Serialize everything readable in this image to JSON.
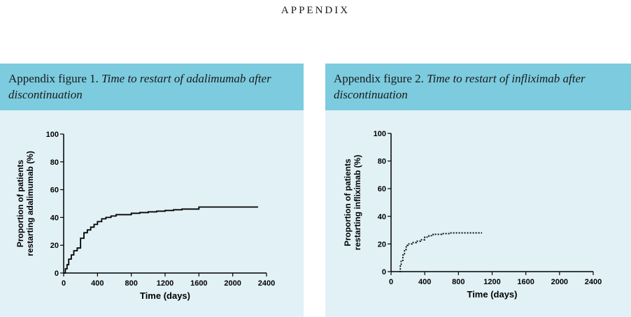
{
  "header": {
    "title": "APPENDIX"
  },
  "figures": [
    {
      "caption_label": "Appendix figure 1.",
      "caption_title": "Time to restart of adalimumab after discontinuation"
    },
    {
      "caption_label": "Appendix figure 2.",
      "caption_title": "Time to restart of infliximab after discontinuation"
    }
  ],
  "chart_data": [
    {
      "type": "line",
      "line_style": "solid",
      "step": true,
      "xlabel": "Time (days)",
      "ylabel": [
        "Proportion of patients",
        "restarting adalimumab (%)"
      ],
      "xlim": [
        0,
        2400
      ],
      "ylim": [
        0,
        100
      ],
      "xticks": [
        "0",
        "400",
        "800",
        "1200",
        "1600",
        "2000",
        "2400"
      ],
      "yticks": [
        "0",
        "20",
        "40",
        "60",
        "80",
        "100"
      ],
      "series": [
        {
          "x": [
            0,
            20,
            40,
            60,
            90,
            120,
            160,
            200,
            240,
            280,
            320,
            360,
            400,
            450,
            500,
            560,
            620,
            700,
            800,
            900,
            1000,
            1100,
            1200,
            1300,
            1400,
            1500,
            1600,
            1700,
            1800,
            2000,
            2150,
            2300
          ],
          "y": [
            0,
            3,
            6,
            10,
            13,
            16,
            18,
            25,
            29,
            31,
            33,
            35,
            37,
            39,
            40,
            41,
            42,
            42,
            43,
            43.5,
            44,
            44.5,
            45,
            45.5,
            46,
            46,
            47.5,
            47.5,
            47.5,
            47.5,
            47.5,
            47.5
          ]
        }
      ]
    },
    {
      "type": "line",
      "line_style": "dotted",
      "step": true,
      "xlabel": "Time (days)",
      "ylabel": [
        "Proportion of patients",
        "restarting infliximab (%)"
      ],
      "xlim": [
        0,
        2400
      ],
      "ylim": [
        0,
        100
      ],
      "xticks": [
        "0",
        "400",
        "800",
        "1200",
        "1600",
        "2000",
        "2400"
      ],
      "yticks": [
        "0",
        "20",
        "40",
        "60",
        "80",
        "100"
      ],
      "series": [
        {
          "x": [
            100,
            110,
            120,
            140,
            160,
            180,
            200,
            250,
            300,
            350,
            400,
            450,
            500,
            600,
            700,
            800,
            900,
            1000,
            1080
          ],
          "y": [
            0,
            4,
            8,
            12,
            16,
            19,
            20,
            21,
            22,
            23,
            25,
            26,
            27,
            27.5,
            28,
            28,
            28,
            28,
            28
          ]
        }
      ]
    }
  ]
}
